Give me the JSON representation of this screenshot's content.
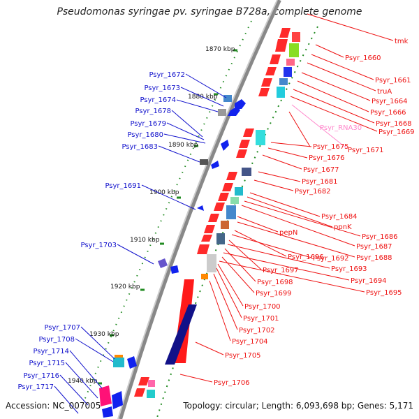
{
  "title": "Pseudomonas syringae pv. syringae B728a, complete genome",
  "accession_label": "Accession: NC_007005",
  "summary": "Topology: circular; Length: 6,093,698 bp; Genes: 5,171",
  "colors": {
    "reverse_label": "#1111cc",
    "forward_label": "#ee1111",
    "rna_label": "#ff88cc",
    "backbone": "#999999",
    "tick": "#228B22"
  },
  "kbp_ticks": [
    "1870 kbp",
    "1880 kbp",
    "1890 kbp",
    "1900 kbp",
    "1910 kbp",
    "1920 kbp",
    "1930 kbp",
    "1940 kbp"
  ],
  "left_labels": [
    "Psyr_1672",
    "Psyr_1673",
    "Psyr_1674",
    "Psyr_1678",
    "Psyr_1679",
    "Psyr_1680",
    "Psyr_1683",
    "Psyr_1691",
    "Psyr_1703",
    "Psyr_1707",
    "Psyr_1708",
    "Psyr_1714",
    "Psyr_1715",
    "Psyr_1716",
    "Psyr_1717"
  ],
  "right_labels": [
    "tmk",
    "Psyr_1660",
    "Psyr_1661",
    "truA",
    "Psyr_1664",
    "Psyr_1666",
    "Psyr_1668",
    "Psyr_1669",
    "Psyr_RNA30",
    "Psyr_1671",
    "Psyr_1675",
    "Psyr_1676",
    "Psyr_1677",
    "Psyr_1681",
    "Psyr_1682",
    "Psyr_1684",
    "ppnK",
    "Psyr_1686",
    "Psyr_1687",
    "pepN",
    "Psyr_1688",
    "Psyr_1696",
    "Psyr_1692",
    "Psyr_1697",
    "Psyr_1693",
    "Psyr_1698",
    "Psyr_1694",
    "Psyr_1699",
    "Psyr_1695",
    "Psyr_1700",
    "Psyr_1701",
    "Psyr_1702",
    "Psyr_1704",
    "Psyr_1705",
    "Psyr_1706"
  ]
}
